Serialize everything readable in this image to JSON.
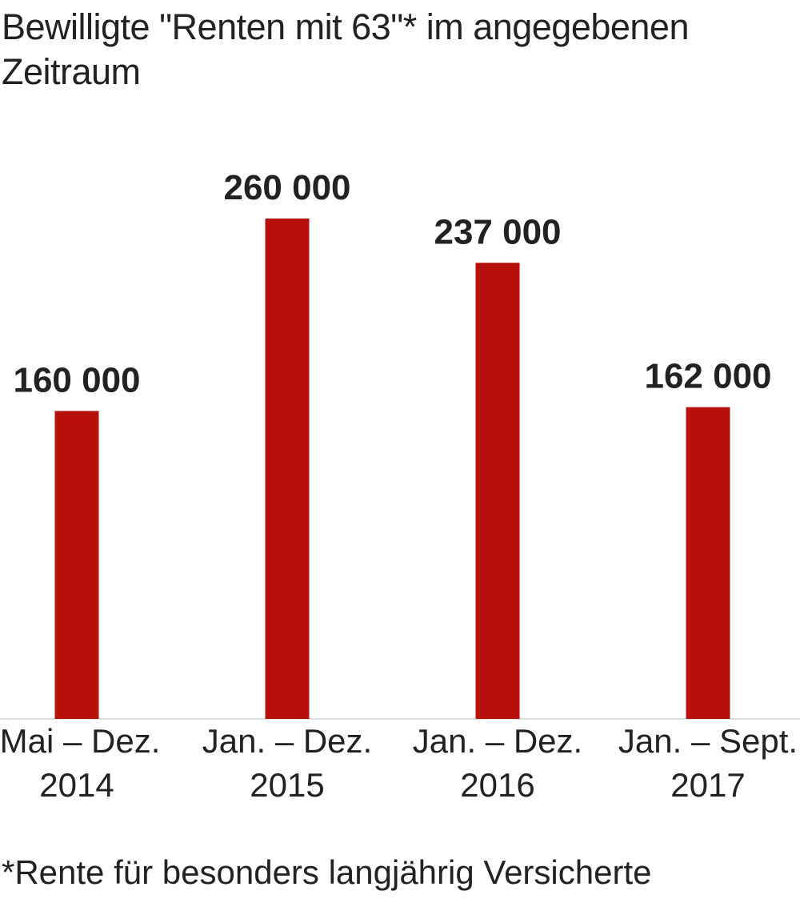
{
  "chart_data": {
    "type": "bar",
    "title": "Bewilligte \"Renten mit 63\"* im angegebenen Zeitraum",
    "categories": [
      [
        "Mai – Dez.",
        "2014"
      ],
      [
        "Jan. – Dez.",
        "2015"
      ],
      [
        "Jan. – Dez.",
        "2016"
      ],
      [
        "Jan. – Sept.",
        "2017"
      ]
    ],
    "values": [
      160000,
      260000,
      237000,
      162000
    ],
    "value_labels": [
      "160 000",
      "260 000",
      "237 000",
      "162 000"
    ],
    "footnote": "*Rente für besonders langjährig Versicherte",
    "grid": false,
    "legend": "none",
    "ylim": [
      0,
      260000
    ],
    "colors": {
      "bar": "#b7100c",
      "text": "#222222",
      "baseline": "#d4d4d4"
    }
  }
}
